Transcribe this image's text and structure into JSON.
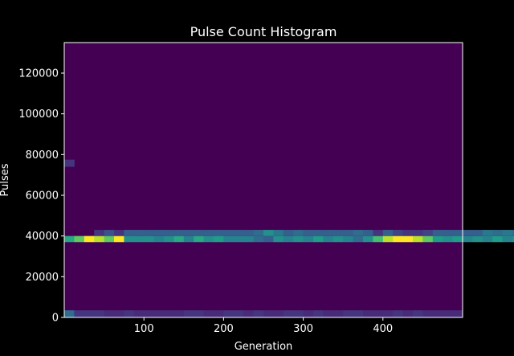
{
  "chart_data": {
    "type": "heatmap",
    "title": "Pulse Count Histogram",
    "xlabel": "Generation",
    "ylabel": "Pulses",
    "xlim": [
      0,
      500
    ],
    "ylim": [
      0,
      135000
    ],
    "x_ticks": [
      100,
      200,
      300,
      400
    ],
    "y_ticks": [
      0,
      20000,
      40000,
      60000,
      80000,
      100000,
      120000
    ],
    "x_tick_labels": [
      "100",
      "200",
      "300",
      "400"
    ],
    "y_tick_labels": [
      "0",
      "20000",
      "40000",
      "60000",
      "80000",
      "100000",
      "120000"
    ],
    "colormap": "viridis",
    "background_color": "#440154",
    "x_bin_width": 12.5,
    "y_bin_width": 3500,
    "bands": [
      {
        "y_start": 0,
        "y_end": 3500,
        "values": [
          0.35,
          0.15,
          0.15,
          0.15,
          0.12,
          0.12,
          0.15,
          0.12,
          0.12,
          0.12,
          0.12,
          0.12,
          0.15,
          0.15,
          0.12,
          0.12,
          0.15,
          0.15,
          0.12,
          0.15,
          0.12,
          0.12,
          0.15,
          0.15,
          0.12,
          0.15,
          0.12,
          0.12,
          0.15,
          0.15,
          0.12,
          0.12,
          0.12,
          0.15,
          0.12,
          0.15,
          0.12,
          0.12,
          0.12,
          0.12
        ]
      },
      {
        "y_start": 37000,
        "y_end": 40000,
        "values": [
          0.6,
          0.75,
          1.0,
          0.9,
          0.75,
          1.0,
          0.5,
          0.5,
          0.5,
          0.45,
          0.5,
          0.6,
          0.45,
          0.6,
          0.5,
          0.55,
          0.45,
          0.45,
          0.45,
          0.35,
          0.3,
          0.5,
          0.45,
          0.5,
          0.45,
          0.55,
          0.45,
          0.5,
          0.45,
          0.35,
          0.5,
          0.7,
          0.9,
          1.0,
          1.0,
          0.9,
          0.75,
          0.55,
          0.5,
          0.55,
          0.45,
          0.5,
          0.45,
          0.55,
          0.45,
          0.5,
          0.45,
          0.45,
          0.45,
          0.5
        ]
      },
      {
        "y_start": 40000,
        "y_end": 43000,
        "values": [
          0.0,
          0.0,
          0.0,
          0.15,
          0.25,
          0.15,
          0.3,
          0.3,
          0.3,
          0.3,
          0.3,
          0.3,
          0.3,
          0.3,
          0.3,
          0.3,
          0.3,
          0.3,
          0.3,
          0.35,
          0.5,
          0.4,
          0.3,
          0.35,
          0.3,
          0.3,
          0.3,
          0.3,
          0.3,
          0.35,
          0.3,
          0.15,
          0.3,
          0.2,
          0.15,
          0.15,
          0.2,
          0.3,
          0.3,
          0.3,
          0.3,
          0.3,
          0.4,
          0.35,
          0.4,
          0.35,
          0.3,
          0.35,
          0.3,
          0.45
        ]
      },
      {
        "y_start": 74000,
        "y_end": 77500,
        "values": [
          0.15
        ]
      }
    ]
  }
}
